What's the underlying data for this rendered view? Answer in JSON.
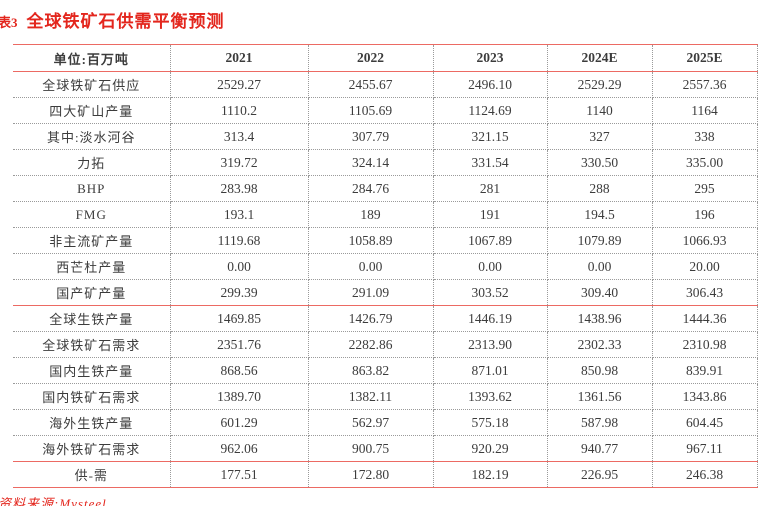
{
  "title": {
    "tag": "表3",
    "text": "全球铁矿石供需平衡预测"
  },
  "table": {
    "unit_header": "单位:百万吨",
    "year_columns": [
      "2021",
      "2022",
      "2023",
      "2024E",
      "2025E"
    ],
    "sections": [
      {
        "name": "supply",
        "rows": [
          {
            "label": "全球铁矿石供应",
            "values": [
              "2529.27",
              "2455.67",
              "2496.10",
              "2529.29",
              "2557.36"
            ]
          },
          {
            "label": "四大矿山产量",
            "values": [
              "1110.2",
              "1105.69",
              "1124.69",
              "1140",
              "1164"
            ]
          },
          {
            "label": "其中:淡水河谷",
            "values": [
              "313.4",
              "307.79",
              "321.15",
              "327",
              "338"
            ]
          },
          {
            "label": "力拓",
            "values": [
              "319.72",
              "324.14",
              "331.54",
              "330.50",
              "335.00"
            ]
          },
          {
            "label": "BHP",
            "values": [
              "283.98",
              "284.76",
              "281",
              "288",
              "295"
            ]
          },
          {
            "label": "FMG",
            "values": [
              "193.1",
              "189",
              "191",
              "194.5",
              "196"
            ]
          },
          {
            "label": "非主流矿产量",
            "values": [
              "1119.68",
              "1058.89",
              "1067.89",
              "1079.89",
              "1066.93"
            ]
          },
          {
            "label": "西芒杜产量",
            "values": [
              "0.00",
              "0.00",
              "0.00",
              "0.00",
              "20.00"
            ]
          },
          {
            "label": "国产矿产量",
            "values": [
              "299.39",
              "291.09",
              "303.52",
              "309.40",
              "306.43"
            ]
          }
        ]
      },
      {
        "name": "demand",
        "rows": [
          {
            "label": "全球生铁产量",
            "values": [
              "1469.85",
              "1426.79",
              "1446.19",
              "1438.96",
              "1444.36"
            ]
          },
          {
            "label": "全球铁矿石需求",
            "values": [
              "2351.76",
              "2282.86",
              "2313.90",
              "2302.33",
              "2310.98"
            ]
          },
          {
            "label": "国内生铁产量",
            "values": [
              "868.56",
              "863.82",
              "871.01",
              "850.98",
              "839.91"
            ]
          },
          {
            "label": "国内铁矿石需求",
            "values": [
              "1389.70",
              "1382.11",
              "1393.62",
              "1361.56",
              "1343.86"
            ]
          },
          {
            "label": "海外生铁产量",
            "values": [
              "601.29",
              "562.97",
              "575.18",
              "587.98",
              "604.45"
            ]
          },
          {
            "label": "海外铁矿石需求",
            "values": [
              "962.06",
              "900.75",
              "920.29",
              "940.77",
              "967.11"
            ]
          }
        ]
      },
      {
        "name": "balance",
        "rows": [
          {
            "label": "供-需",
            "values": [
              "177.51",
              "172.80",
              "182.19",
              "226.95",
              "246.38"
            ]
          }
        ]
      }
    ]
  },
  "footer": {
    "source_label": "资料来源:Mysteel"
  },
  "colors": {
    "title_red": "#e3261d",
    "separator_red": "#ec6a63",
    "text_gray": "#3c3c3c",
    "dotted_gray": "#9a9a9a"
  }
}
